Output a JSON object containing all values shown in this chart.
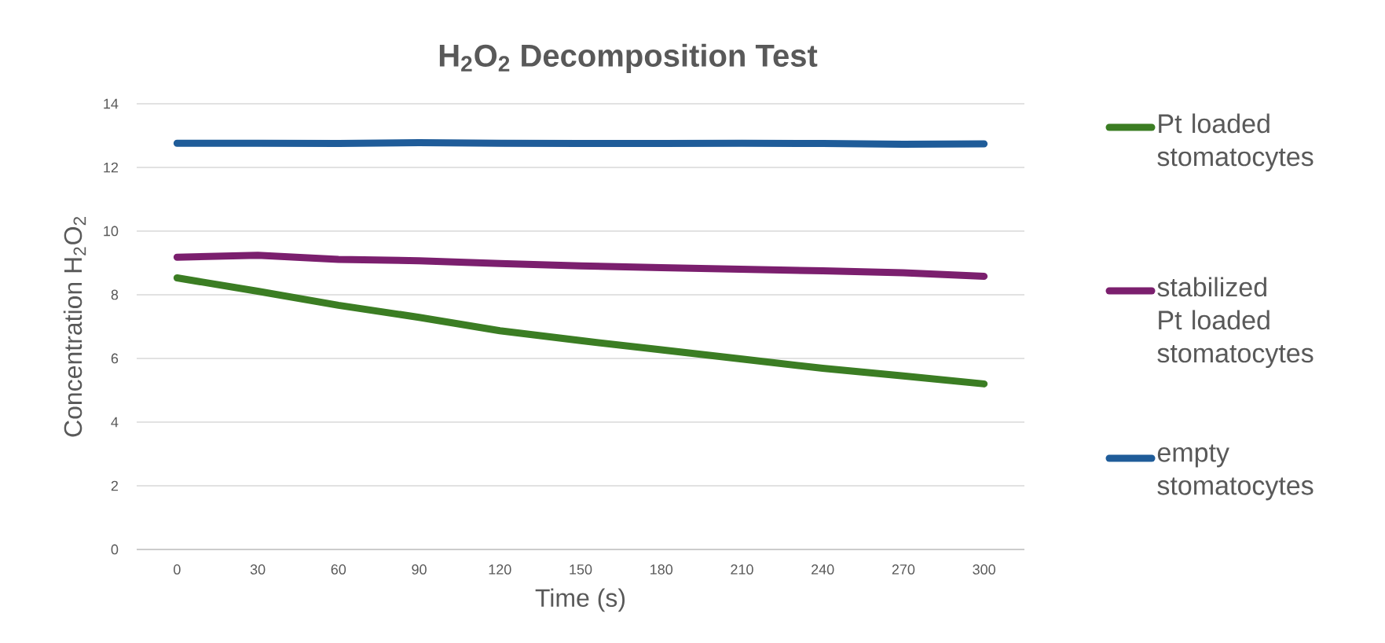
{
  "chart_data": {
    "type": "line",
    "title": "H$_{2}$O$_{2}$ Decomposition Test",
    "xlabel": "Time (s)",
    "ylabel": "Concentration H$_{2}$O$_{2}$",
    "categories": [
      "0",
      "30",
      "60",
      "90",
      "120",
      "150",
      "180",
      "210",
      "240",
      "270",
      "300"
    ],
    "series": [
      {
        "name": "Pt loaded stomatocytes",
        "color": "#3b7d23",
        "values": [
          8.53,
          8.11,
          7.67,
          7.29,
          6.87,
          6.56,
          6.27,
          5.98,
          5.69,
          5.45,
          5.2
        ]
      },
      {
        "name": "stabilized Pt loaded stomatocytes",
        "color": "#7b1f6e",
        "values": [
          9.18,
          9.24,
          9.11,
          9.07,
          8.98,
          8.91,
          8.85,
          8.8,
          8.75,
          8.69,
          8.58
        ]
      },
      {
        "name": "empty stomatocytes",
        "color": "#1f5c99",
        "values": [
          12.76,
          12.76,
          12.75,
          12.78,
          12.76,
          12.75,
          12.75,
          12.76,
          12.75,
          12.73,
          12.74
        ]
      }
    ],
    "ylim": [
      0,
      14
    ],
    "yticks": [
      0,
      2,
      4,
      6,
      8,
      10,
      12,
      14
    ],
    "grid": "y",
    "legend": "right"
  }
}
